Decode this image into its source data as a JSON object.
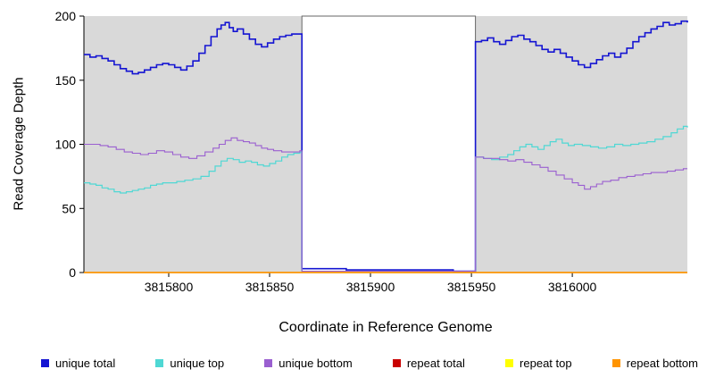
{
  "chart_data": {
    "type": "line",
    "step": true,
    "title": "",
    "xlabel": "Coordinate in Reference Genome",
    "ylabel": "Read Coverage Depth",
    "xlim": [
      3815758,
      3816057
    ],
    "ylim": [
      0,
      200
    ],
    "x_ticks": [
      3815800,
      3815850,
      3815900,
      3815950,
      3816000
    ],
    "y_ticks": [
      0,
      50,
      100,
      150,
      200
    ],
    "panel_color": "#d9d9d9",
    "gap_region": {
      "start": 3815866,
      "end": 3815952,
      "fill": "#ffffff",
      "border": "#666666"
    },
    "series": [
      {
        "name": "unique total",
        "color": "#1414d2",
        "width": 1.6,
        "points": [
          [
            3815758,
            170
          ],
          [
            3815761,
            168
          ],
          [
            3815764,
            169
          ],
          [
            3815767,
            167
          ],
          [
            3815770,
            165
          ],
          [
            3815773,
            162
          ],
          [
            3815776,
            159
          ],
          [
            3815779,
            157
          ],
          [
            3815782,
            155
          ],
          [
            3815785,
            156
          ],
          [
            3815788,
            158
          ],
          [
            3815791,
            160
          ],
          [
            3815794,
            162
          ],
          [
            3815797,
            163
          ],
          [
            3815800,
            162
          ],
          [
            3815803,
            160
          ],
          [
            3815806,
            158
          ],
          [
            3815809,
            161
          ],
          [
            3815812,
            165
          ],
          [
            3815815,
            171
          ],
          [
            3815818,
            177
          ],
          [
            3815821,
            184
          ],
          [
            3815824,
            190
          ],
          [
            3815826,
            193
          ],
          [
            3815828,
            195
          ],
          [
            3815830,
            191
          ],
          [
            3815832,
            188
          ],
          [
            3815834,
            190
          ],
          [
            3815837,
            186
          ],
          [
            3815840,
            182
          ],
          [
            3815843,
            178
          ],
          [
            3815846,
            176
          ],
          [
            3815849,
            179
          ],
          [
            3815852,
            182
          ],
          [
            3815855,
            184
          ],
          [
            3815858,
            185
          ],
          [
            3815861,
            186
          ],
          [
            3815865,
            186
          ],
          [
            3815866,
            3
          ],
          [
            3815878,
            3
          ],
          [
            3815888,
            2
          ],
          [
            3815905,
            2
          ],
          [
            3815922,
            2
          ],
          [
            3815934,
            2
          ],
          [
            3815941,
            1
          ],
          [
            3815947,
            1
          ],
          [
            3815951,
            1
          ],
          [
            3815952,
            180
          ],
          [
            3815955,
            181
          ],
          [
            3815958,
            183
          ],
          [
            3815961,
            180
          ],
          [
            3815964,
            178
          ],
          [
            3815967,
            181
          ],
          [
            3815970,
            184
          ],
          [
            3815973,
            185
          ],
          [
            3815976,
            182
          ],
          [
            3815979,
            180
          ],
          [
            3815982,
            177
          ],
          [
            3815985,
            174
          ],
          [
            3815988,
            172
          ],
          [
            3815991,
            174
          ],
          [
            3815994,
            171
          ],
          [
            3815997,
            168
          ],
          [
            3816000,
            165
          ],
          [
            3816003,
            162
          ],
          [
            3816006,
            160
          ],
          [
            3816009,
            163
          ],
          [
            3816012,
            166
          ],
          [
            3816015,
            169
          ],
          [
            3816018,
            171
          ],
          [
            3816021,
            168
          ],
          [
            3816024,
            171
          ],
          [
            3816027,
            175
          ],
          [
            3816030,
            180
          ],
          [
            3816033,
            184
          ],
          [
            3816036,
            187
          ],
          [
            3816039,
            190
          ],
          [
            3816042,
            192
          ],
          [
            3816045,
            195
          ],
          [
            3816048,
            193
          ],
          [
            3816051,
            194
          ],
          [
            3816054,
            196
          ],
          [
            3816057,
            195
          ]
        ]
      },
      {
        "name": "unique top",
        "color": "#4fd8d4",
        "width": 1.2,
        "points": [
          [
            3815758,
            70
          ],
          [
            3815761,
            69
          ],
          [
            3815764,
            68
          ],
          [
            3815767,
            66
          ],
          [
            3815770,
            65
          ],
          [
            3815773,
            63
          ],
          [
            3815776,
            62
          ],
          [
            3815779,
            63
          ],
          [
            3815782,
            64
          ],
          [
            3815785,
            65
          ],
          [
            3815788,
            66
          ],
          [
            3815791,
            68
          ],
          [
            3815794,
            69
          ],
          [
            3815797,
            70
          ],
          [
            3815800,
            70
          ],
          [
            3815804,
            71
          ],
          [
            3815808,
            72
          ],
          [
            3815812,
            73
          ],
          [
            3815816,
            75
          ],
          [
            3815820,
            79
          ],
          [
            3815823,
            83
          ],
          [
            3815826,
            87
          ],
          [
            3815829,
            89
          ],
          [
            3815832,
            88
          ],
          [
            3815835,
            86
          ],
          [
            3815838,
            87
          ],
          [
            3815841,
            86
          ],
          [
            3815844,
            84
          ],
          [
            3815847,
            83
          ],
          [
            3815850,
            85
          ],
          [
            3815853,
            87
          ],
          [
            3815856,
            90
          ],
          [
            3815859,
            92
          ],
          [
            3815862,
            93
          ],
          [
            3815865,
            94
          ],
          [
            3815866,
            1
          ],
          [
            3815910,
            1
          ],
          [
            3815951,
            1
          ],
          [
            3815952,
            90
          ],
          [
            3815956,
            89
          ],
          [
            3815960,
            88
          ],
          [
            3815964,
            90
          ],
          [
            3815968,
            92
          ],
          [
            3815971,
            95
          ],
          [
            3815974,
            98
          ],
          [
            3815977,
            100
          ],
          [
            3815980,
            98
          ],
          [
            3815983,
            96
          ],
          [
            3815986,
            99
          ],
          [
            3815989,
            102
          ],
          [
            3815992,
            104
          ],
          [
            3815995,
            101
          ],
          [
            3815998,
            99
          ],
          [
            3816001,
            100
          ],
          [
            3816005,
            99
          ],
          [
            3816009,
            98
          ],
          [
            3816013,
            97
          ],
          [
            3816017,
            98
          ],
          [
            3816021,
            100
          ],
          [
            3816025,
            99
          ],
          [
            3816029,
            100
          ],
          [
            3816033,
            101
          ],
          [
            3816037,
            102
          ],
          [
            3816041,
            104
          ],
          [
            3816045,
            106
          ],
          [
            3816049,
            109
          ],
          [
            3816052,
            112
          ],
          [
            3816055,
            114
          ],
          [
            3816057,
            113
          ]
        ]
      },
      {
        "name": "unique bottom",
        "color": "#9a5fd0",
        "width": 1.1,
        "points": [
          [
            3815758,
            100
          ],
          [
            3815762,
            100
          ],
          [
            3815766,
            99
          ],
          [
            3815770,
            98
          ],
          [
            3815774,
            96
          ],
          [
            3815778,
            94
          ],
          [
            3815782,
            93
          ],
          [
            3815786,
            92
          ],
          [
            3815790,
            93
          ],
          [
            3815794,
            95
          ],
          [
            3815798,
            94
          ],
          [
            3815802,
            92
          ],
          [
            3815806,
            90
          ],
          [
            3815810,
            89
          ],
          [
            3815814,
            91
          ],
          [
            3815818,
            94
          ],
          [
            3815822,
            97
          ],
          [
            3815825,
            100
          ],
          [
            3815828,
            103
          ],
          [
            3815831,
            105
          ],
          [
            3815834,
            103
          ],
          [
            3815837,
            102
          ],
          [
            3815840,
            101
          ],
          [
            3815843,
            99
          ],
          [
            3815846,
            97
          ],
          [
            3815849,
            96
          ],
          [
            3815852,
            95
          ],
          [
            3815856,
            94
          ],
          [
            3815860,
            94
          ],
          [
            3815865,
            95
          ],
          [
            3815866,
            1
          ],
          [
            3815910,
            1
          ],
          [
            3815951,
            1
          ],
          [
            3815952,
            90
          ],
          [
            3815956,
            89
          ],
          [
            3815960,
            89
          ],
          [
            3815964,
            88
          ],
          [
            3815968,
            87
          ],
          [
            3815972,
            88
          ],
          [
            3815976,
            86
          ],
          [
            3815980,
            84
          ],
          [
            3815984,
            82
          ],
          [
            3815988,
            79
          ],
          [
            3815992,
            76
          ],
          [
            3815996,
            73
          ],
          [
            3816000,
            70
          ],
          [
            3816003,
            68
          ],
          [
            3816006,
            65
          ],
          [
            3816009,
            67
          ],
          [
            3816012,
            69
          ],
          [
            3816015,
            71
          ],
          [
            3816019,
            72
          ],
          [
            3816023,
            74
          ],
          [
            3816027,
            75
          ],
          [
            3816031,
            76
          ],
          [
            3816035,
            77
          ],
          [
            3816039,
            78
          ],
          [
            3816043,
            78
          ],
          [
            3816047,
            79
          ],
          [
            3816051,
            80
          ],
          [
            3816055,
            81
          ],
          [
            3816057,
            81
          ]
        ]
      },
      {
        "name": "repeat total",
        "color": "#c90000",
        "width": 1.2,
        "points": [
          [
            3815758,
            0
          ],
          [
            3816057,
            0
          ]
        ]
      },
      {
        "name": "repeat top",
        "color": "#ffff00",
        "width": 1.2,
        "points": [
          [
            3815758,
            0
          ],
          [
            3816057,
            0
          ]
        ]
      },
      {
        "name": "repeat bottom",
        "color": "#ff9400",
        "width": 1.5,
        "points": [
          [
            3815758,
            0
          ],
          [
            3816057,
            0
          ]
        ]
      }
    ],
    "legend": [
      {
        "label": "unique total",
        "color": "#1414d2"
      },
      {
        "label": "unique top",
        "color": "#4fd8d4"
      },
      {
        "label": "unique bottom",
        "color": "#9a5fd0"
      },
      {
        "label": "repeat total",
        "color": "#c90000"
      },
      {
        "label": "repeat top",
        "color": "#ffff00"
      },
      {
        "label": "repeat bottom",
        "color": "#ff9400"
      }
    ]
  }
}
